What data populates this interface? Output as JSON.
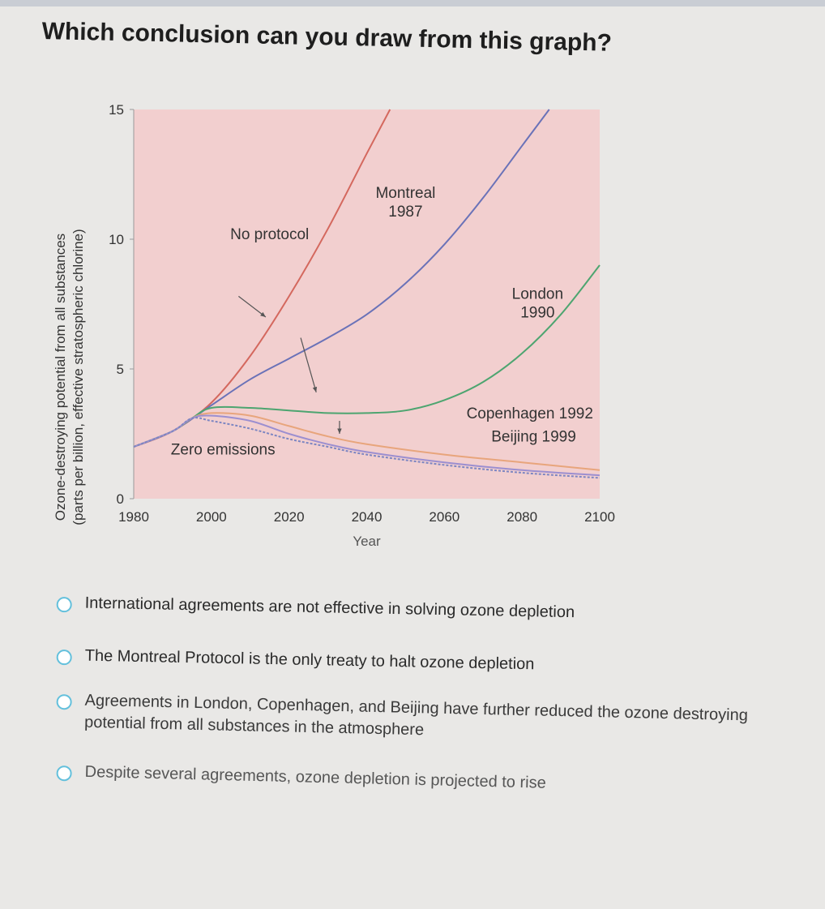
{
  "question": "Which conclusion can you draw from this graph?",
  "chart_data": {
    "type": "line",
    "ylabel_lines": [
      "Ozone-destroying potential from all substances",
      "(parts per billion, effective stratospheric chlorine)"
    ],
    "xlabel": "Year",
    "xlim": [
      1980,
      2100
    ],
    "ylim": [
      0,
      15
    ],
    "x_ticks": [
      "1980",
      "2000",
      "2020",
      "2040",
      "2060",
      "2080",
      "2100"
    ],
    "y_ticks": [
      "0",
      "5",
      "10",
      "15"
    ],
    "background_fill": "#f2cfcf",
    "series": [
      {
        "name": "No protocol",
        "color": "#d4685e",
        "x": [
          1980,
          1990,
          2000,
          2010,
          2020,
          2030,
          2040,
          2046
        ],
        "y": [
          2.0,
          2.6,
          3.7,
          5.5,
          7.8,
          10.4,
          13.3,
          15.0
        ]
      },
      {
        "name": "Montreal 1987",
        "color": "#6a72b8",
        "x": [
          1980,
          1990,
          2000,
          2010,
          2020,
          2030,
          2040,
          2050,
          2060,
          2070,
          2080,
          2087
        ],
        "y": [
          2.0,
          2.6,
          3.6,
          4.6,
          5.4,
          6.2,
          7.1,
          8.3,
          9.8,
          11.6,
          13.6,
          15.0
        ]
      },
      {
        "name": "London 1990",
        "color": "#4da570",
        "x": [
          1980,
          1990,
          1995,
          2000,
          2010,
          2020,
          2030,
          2040,
          2050,
          2060,
          2070,
          2080,
          2090,
          2100
        ],
        "y": [
          2.0,
          2.6,
          3.1,
          3.5,
          3.5,
          3.4,
          3.3,
          3.3,
          3.4,
          3.8,
          4.5,
          5.6,
          7.1,
          9.0
        ]
      },
      {
        "name": "Copenhagen 1992",
        "color": "#e8a57c",
        "x": [
          1980,
          1990,
          1995,
          2000,
          2010,
          2020,
          2030,
          2040,
          2060,
          2080,
          2100
        ],
        "y": [
          2.0,
          2.6,
          3.1,
          3.3,
          3.2,
          2.8,
          2.4,
          2.1,
          1.7,
          1.4,
          1.1
        ]
      },
      {
        "name": "Beijing 1999",
        "color": "#9c8fd0",
        "x": [
          1980,
          1990,
          1995,
          2000,
          2010,
          2020,
          2030,
          2040,
          2060,
          2080,
          2100
        ],
        "y": [
          2.0,
          2.6,
          3.1,
          3.2,
          3.0,
          2.5,
          2.1,
          1.8,
          1.4,
          1.1,
          0.9
        ]
      },
      {
        "name": "Zero emissions",
        "color": "#7d86c2",
        "dashed": true,
        "x": [
          1980,
          1990,
          1995,
          2000,
          2010,
          2020,
          2030,
          2040,
          2060,
          2080,
          2100
        ],
        "y": [
          2.0,
          2.6,
          3.1,
          3.0,
          2.7,
          2.3,
          2.0,
          1.7,
          1.3,
          1.0,
          0.8
        ]
      }
    ],
    "annotations": [
      {
        "text": "No protocol",
        "x": 2015,
        "y": 10.0
      },
      {
        "text_lines": [
          "Montreal",
          "1987"
        ],
        "x": 2050,
        "y": 11.6
      },
      {
        "text_lines": [
          "London",
          "1990"
        ],
        "x": 2084,
        "y": 7.7
      },
      {
        "text": "Copenhagen 1992",
        "x": 2082,
        "y": 3.1
      },
      {
        "text": "Beijing 1999",
        "x": 2083,
        "y": 2.2
      },
      {
        "text": "Zero emissions",
        "x": 2003,
        "y": 1.7
      }
    ],
    "arrows": [
      {
        "x1": 2007,
        "y1": 7.8,
        "x2": 2014,
        "y2": 7.0
      },
      {
        "x1": 2023,
        "y1": 6.2,
        "x2": 2027,
        "y2": 4.1
      },
      {
        "x1": 2033,
        "y1": 3.0,
        "x2": 2033,
        "y2": 2.5
      }
    ]
  },
  "options": [
    "International agreements are not effective in solving ozone depletion",
    "The Montreal Protocol is the only treaty to halt ozone depletion",
    "Agreements in London, Copenhagen, and Beijing have further reduced the ozone destroying potential from all substances in the atmosphere",
    "Despite several agreements, ozone depletion is projected to rise"
  ]
}
